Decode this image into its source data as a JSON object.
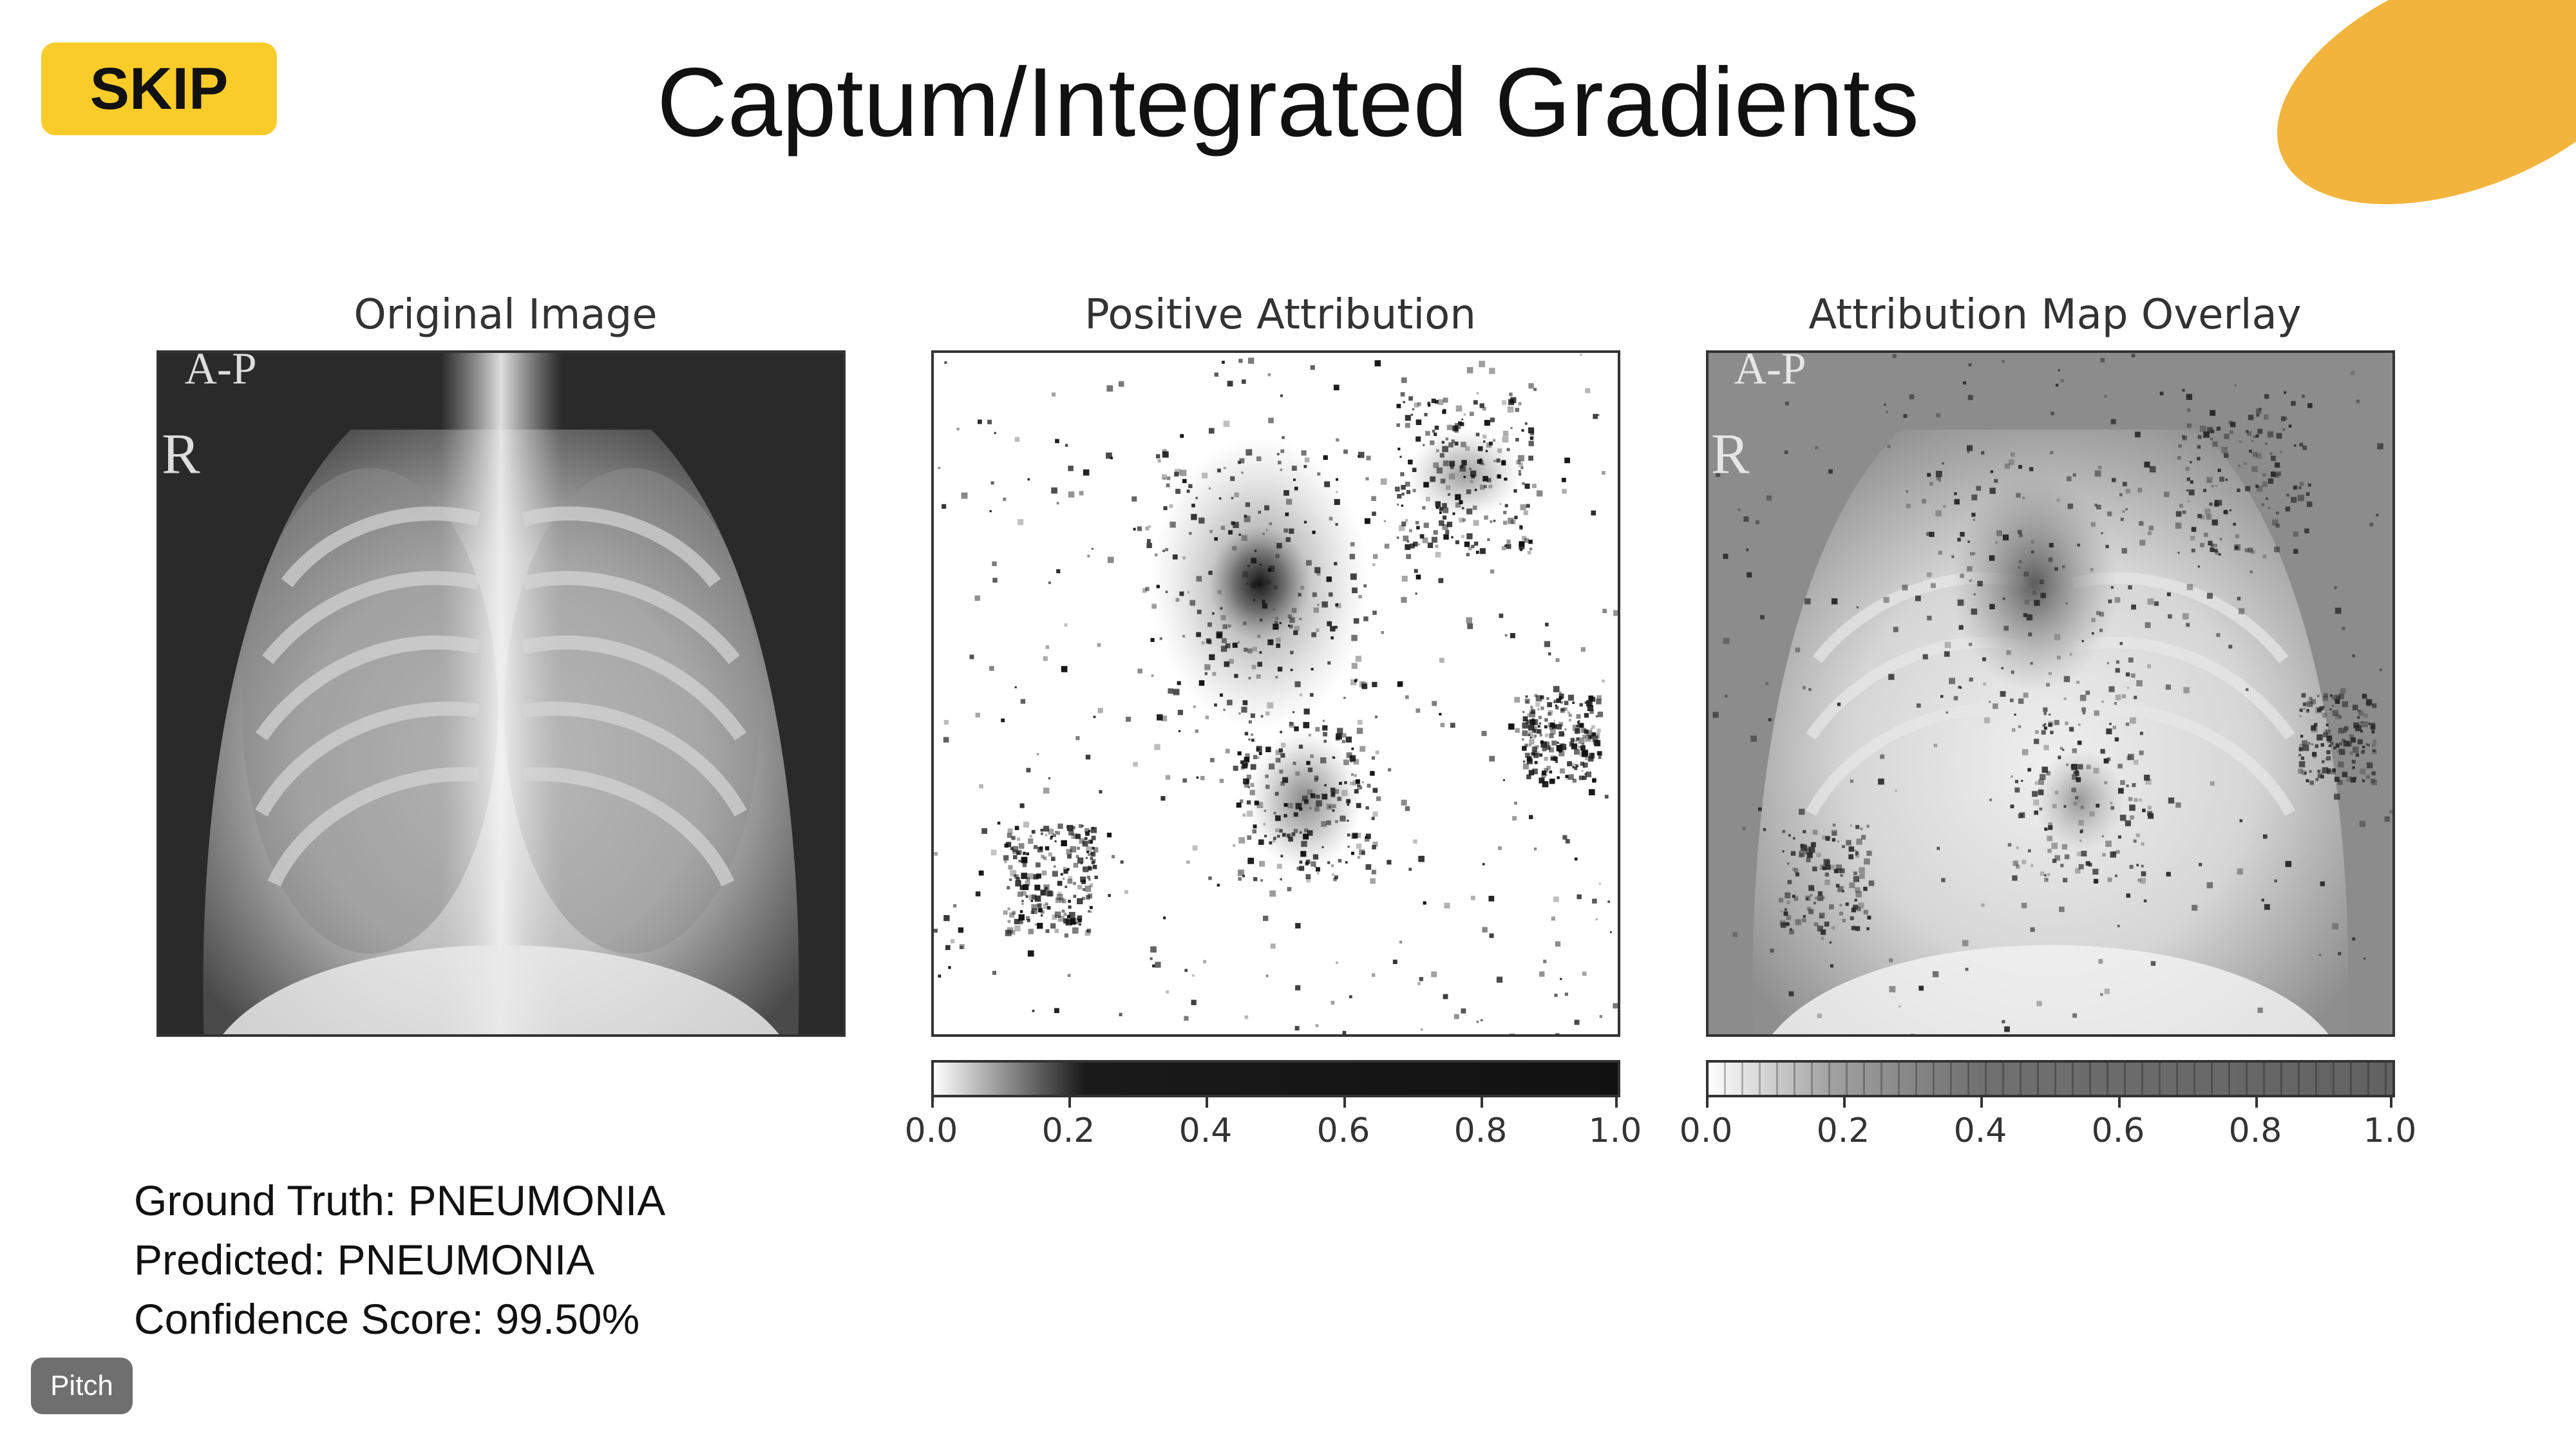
{
  "header": {
    "skip_label": "SKIP",
    "title": "Captum/Integrated Gradients"
  },
  "panels": [
    {
      "title": "Original Image",
      "overlay_text": [
        "A-P",
        "R"
      ]
    },
    {
      "title": "Positive Attribution"
    },
    {
      "title": "Attribution Map Overlay",
      "overlay_text": [
        "A-P",
        "R"
      ]
    }
  ],
  "colorbars": [
    {
      "ticks": [
        "0.0",
        "0.2",
        "0.4",
        "0.6",
        "0.8",
        "1.0"
      ]
    },
    {
      "ticks": [
        "0.0",
        "0.2",
        "0.4",
        "0.6",
        "0.8",
        "1.0"
      ]
    }
  ],
  "info": {
    "ground_truth": "Ground Truth: PNEUMONIA",
    "predicted": "Predicted: PNEUMONIA",
    "confidence": "Confidence Score: 99.50%"
  },
  "badge": {
    "label": "Pitch"
  },
  "colors": {
    "accent_yellow": "#f9cc2a",
    "blob_orange": "#f3b43d",
    "badge_gray": "#6f6f6f"
  }
}
